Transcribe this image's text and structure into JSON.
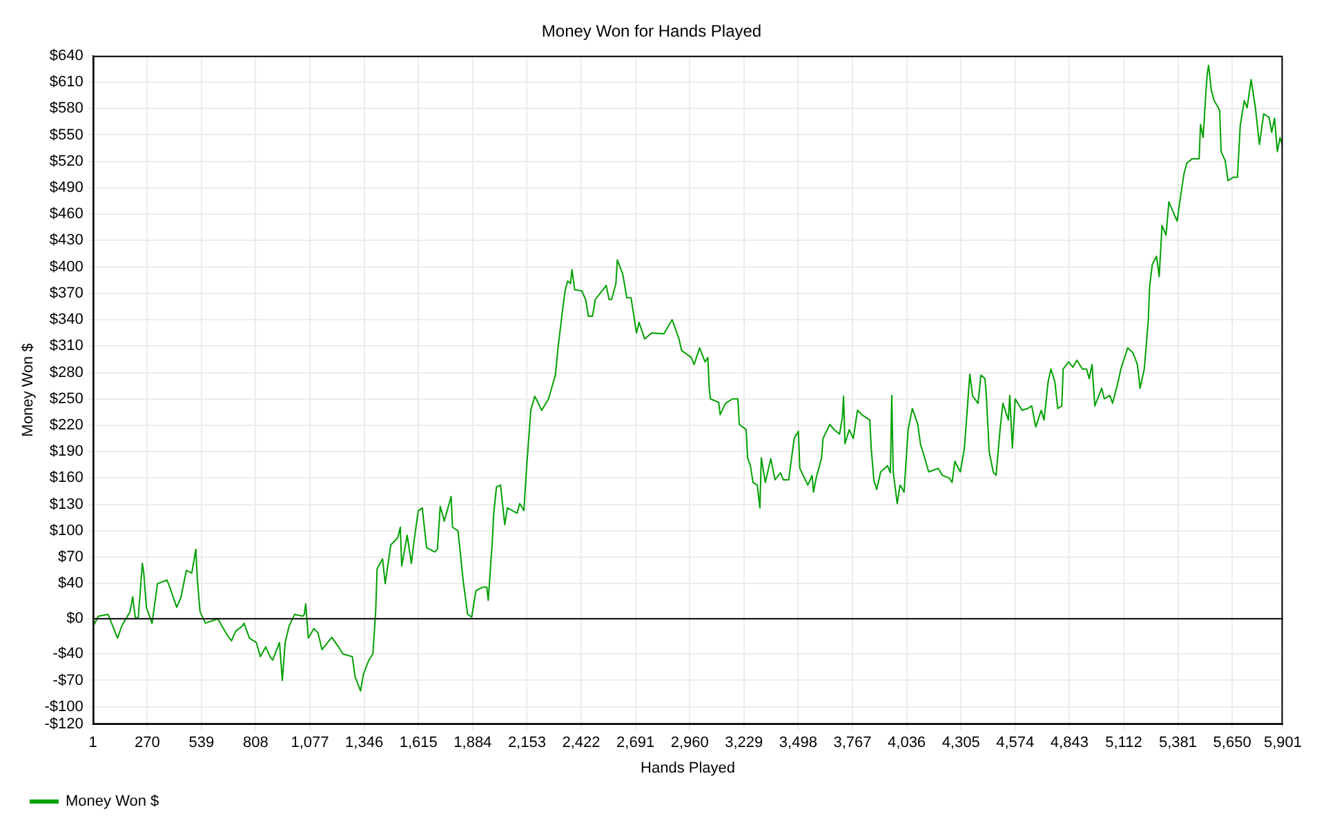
{
  "chart_data": {
    "type": "line",
    "title": "Money Won for Hands Played",
    "xlabel": "Hands Played",
    "ylabel": "Money Won $",
    "x": [
      1,
      8,
      28,
      76,
      123,
      144,
      185,
      198,
      212,
      226,
      246,
      253,
      266,
      294,
      321,
      368,
      382,
      416,
      437,
      464,
      491,
      511,
      518,
      532,
      559,
      620,
      668,
      688,
      709,
      743,
      750,
      777,
      811,
      831,
      858,
      879,
      892,
      926,
      940,
      954,
      974,
      1001,
      1042,
      1049,
      1056,
      1069,
      1097,
      1117,
      1137,
      1185,
      1219,
      1240,
      1287,
      1301,
      1328,
      1342,
      1369,
      1389,
      1403,
      1410,
      1437,
      1450,
      1478,
      1512,
      1525,
      1532,
      1559,
      1580,
      1593,
      1614,
      1634,
      1655,
      1695,
      1709,
      1723,
      1743,
      1777,
      1784,
      1811,
      1838,
      1859,
      1879,
      1900,
      1934,
      1954,
      1961,
      1981,
      1988,
      2002,
      2022,
      2043,
      2056,
      2104,
      2117,
      2138,
      2151,
      2172,
      2192,
      2226,
      2260,
      2294,
      2308,
      2328,
      2342,
      2355,
      2369,
      2376,
      2390,
      2424,
      2444,
      2458,
      2478,
      2492,
      2526,
      2546,
      2560,
      2573,
      2594,
      2601,
      2628,
      2648,
      2669,
      2696,
      2709,
      2737,
      2771,
      2832,
      2873,
      2907,
      2920,
      2968,
      2982,
      3009,
      3036,
      3050,
      3057,
      3063,
      3104,
      3111,
      3138,
      3172,
      3199,
      3206,
      3240,
      3247,
      3261,
      3274,
      3295,
      3308,
      3315,
      3335,
      3362,
      3383,
      3410,
      3424,
      3451,
      3478,
      3499,
      3506,
      3533,
      3546,
      3567,
      3574,
      3587,
      3614,
      3621,
      3655,
      3676,
      3703,
      3717,
      3723,
      3730,
      3751,
      3771,
      3792,
      3819,
      3853,
      3860,
      3873,
      3887,
      3907,
      3941,
      3955,
      3962,
      3969,
      3989,
      4003,
      4023,
      4043,
      4064,
      4091,
      4104,
      4125,
      4145,
      4193,
      4213,
      4247,
      4261,
      4275,
      4302,
      4322,
      4336,
      4349,
      4363,
      4390,
      4404,
      4424,
      4431,
      4445,
      4465,
      4479,
      4499,
      4513,
      4540,
      4547,
      4560,
      4574,
      4608,
      4635,
      4656,
      4676,
      4703,
      4717,
      4737,
      4751,
      4771,
      4785,
      4805,
      4812,
      4839,
      4860,
      4880,
      4907,
      4928,
      4941,
      4955,
      4969,
      5003,
      5016,
      5043,
      5057,
      5084,
      5098,
      5132,
      5159,
      5180,
      5193,
      5214,
      5220,
      5234,
      5241,
      5254,
      5275,
      5288,
      5302,
      5322,
      5336,
      5356,
      5377,
      5390,
      5411,
      5425,
      5452,
      5486,
      5493,
      5506,
      5520,
      5527,
      5533,
      5547,
      5561,
      5588,
      5595,
      5615,
      5629,
      5656,
      5676,
      5690,
      5710,
      5724,
      5744,
      5765,
      5785,
      5806,
      5833,
      5846,
      5860,
      5874,
      5887,
      5901
    ],
    "series": [
      {
        "name": "Money Won $",
        "color": "#00a000",
        "values": [
          0,
          -6,
          3,
          5,
          -22,
          -8,
          8,
          25,
          0,
          2,
          63,
          52,
          13,
          -5,
          40,
          44,
          36,
          13,
          24,
          55,
          52,
          79,
          47,
          8,
          -5,
          0,
          -19,
          -25,
          -14,
          -8,
          -5,
          -22,
          -27,
          -43,
          -32,
          -43,
          -47,
          -27,
          -70,
          -27,
          -8,
          5,
          3,
          5,
          17,
          -22,
          -11,
          -16,
          -35,
          -21,
          -32,
          -40,
          -43,
          -66,
          -82,
          -63,
          -47,
          -40,
          9,
          57,
          68,
          40,
          84,
          92,
          104,
          60,
          95,
          63,
          88,
          123,
          126,
          81,
          76,
          79,
          128,
          111,
          139,
          104,
          100,
          41,
          5,
          2,
          32,
          36,
          36,
          21,
          87,
          119,
          150,
          152,
          107,
          126,
          120,
          131,
          123,
          171,
          237,
          253,
          237,
          250,
          277,
          310,
          348,
          373,
          384,
          381,
          397,
          374,
          373,
          363,
          344,
          344,
          363,
          373,
          379,
          363,
          363,
          381,
          408,
          392,
          365,
          365,
          325,
          337,
          318,
          325,
          324,
          340,
          318,
          305,
          297,
          289,
          308,
          292,
          297,
          261,
          250,
          246,
          232,
          245,
          250,
          250,
          221,
          215,
          183,
          174,
          155,
          152,
          126,
          183,
          155,
          182,
          158,
          166,
          158,
          158,
          205,
          213,
          171,
          158,
          152,
          163,
          144,
          160,
          183,
          205,
          221,
          215,
          210,
          229,
          253,
          199,
          215,
          205,
          237,
          231,
          226,
          194,
          158,
          147,
          167,
          174,
          166,
          254,
          167,
          131,
          152,
          144,
          215,
          239,
          221,
          199,
          183,
          167,
          171,
          163,
          160,
          155,
          179,
          167,
          194,
          237,
          278,
          253,
          245,
          277,
          273,
          253,
          190,
          167,
          163,
          215,
          245,
          226,
          254,
          194,
          250,
          237,
          239,
          242,
          218,
          237,
          226,
          269,
          284,
          269,
          239,
          242,
          284,
          292,
          286,
          294,
          284,
          284,
          273,
          289,
          242,
          262,
          250,
          254,
          245,
          269,
          284,
          308,
          302,
          289,
          262,
          284,
          300,
          340,
          379,
          403,
          412,
          389,
          447,
          436,
          474,
          463,
          452,
          474,
          506,
          518,
          523,
          523,
          562,
          547,
          600,
          621,
          629,
          600,
          589,
          578,
          531,
          521,
          498,
          502,
          502,
          561,
          589,
          581,
          613,
          581,
          539,
          574,
          570,
          553,
          569,
          531,
          547,
          537
        ]
      }
    ],
    "xlim": [
      1,
      5901
    ],
    "xticks": [
      1,
      270,
      539,
      808,
      {
        "value": 1077,
        "label": "1,077"
      },
      {
        "value": 1346,
        "label": "1,346"
      },
      {
        "value": 1615,
        "label": "1,615"
      },
      {
        "value": 1884,
        "label": "1,884"
      },
      {
        "value": 2153,
        "label": "2,153"
      },
      {
        "value": 2422,
        "label": "2,422"
      },
      {
        "value": 2691,
        "label": "2,691"
      },
      {
        "value": 2960,
        "label": "2,960"
      },
      {
        "value": 3229,
        "label": "3,229"
      },
      {
        "value": 3498,
        "label": "3,498"
      },
      {
        "value": 3767,
        "label": "3,767"
      },
      {
        "value": 4036,
        "label": "4,036"
      },
      {
        "value": 4305,
        "label": "4,305"
      },
      {
        "value": 4574,
        "label": "4,574"
      },
      {
        "value": 4843,
        "label": "4,843"
      },
      {
        "value": 5112,
        "label": "5,112"
      },
      {
        "value": 5381,
        "label": "5,381"
      },
      {
        "value": 5650,
        "label": "5,650"
      },
      {
        "value": 5901,
        "label": "5,901"
      }
    ],
    "ylim": [
      -120,
      640
    ],
    "yticks": [
      {
        "value": -120,
        "label": "-$120"
      },
      {
        "value": -100,
        "label": "-$100"
      },
      {
        "value": -70,
        "label": "-$70"
      },
      {
        "value": -40,
        "label": "-$40"
      },
      {
        "value": 0,
        "label": "$0"
      },
      {
        "value": 40,
        "label": "$40"
      },
      {
        "value": 70,
        "label": "$70"
      },
      {
        "value": 100,
        "label": "$100"
      },
      {
        "value": 130,
        "label": "$130"
      },
      {
        "value": 160,
        "label": "$160"
      },
      {
        "value": 190,
        "label": "$190"
      },
      {
        "value": 220,
        "label": "$220"
      },
      {
        "value": 250,
        "label": "$250"
      },
      {
        "value": 280,
        "label": "$280"
      },
      {
        "value": 310,
        "label": "$310"
      },
      {
        "value": 340,
        "label": "$340"
      },
      {
        "value": 370,
        "label": "$370"
      },
      {
        "value": 400,
        "label": "$400"
      },
      {
        "value": 430,
        "label": "$430"
      },
      {
        "value": 460,
        "label": "$460"
      },
      {
        "value": 490,
        "label": "$490"
      },
      {
        "value": 520,
        "label": "$520"
      },
      {
        "value": 550,
        "label": "$550"
      },
      {
        "value": 580,
        "label": "$580"
      },
      {
        "value": 610,
        "label": "$610"
      },
      {
        "value": 640,
        "label": "$640"
      }
    ],
    "ref_lines": [
      {
        "axis": "y",
        "value": 0,
        "color": "#000000"
      }
    ],
    "grid": true,
    "legend": "bottom left",
    "marker": "none",
    "line_style": "solid"
  }
}
